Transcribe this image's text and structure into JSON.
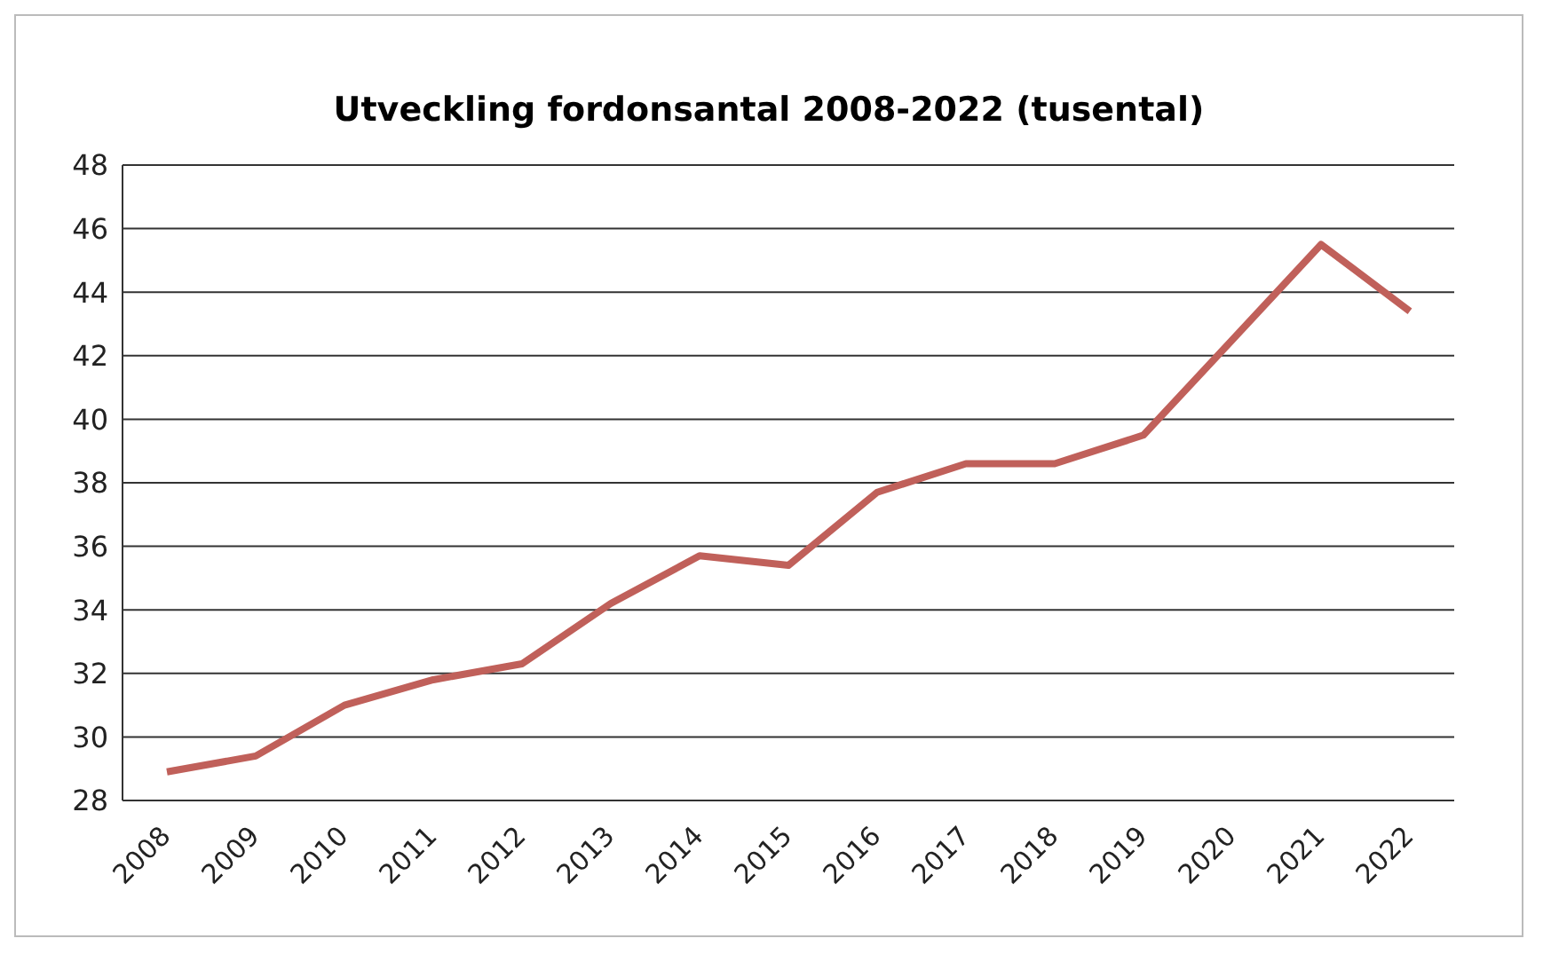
{
  "chart_data": {
    "type": "line",
    "title": "Utveckling fordonsantal 2008-2022 (tusental)",
    "categories": [
      "2008",
      "2009",
      "2010",
      "2011",
      "2012",
      "2013",
      "2014",
      "2015",
      "2016",
      "2017",
      "2018",
      "2019",
      "2020",
      "2021",
      "2022"
    ],
    "series": [
      {
        "color": "#c0605a",
        "values": [
          28.9,
          29.4,
          31.0,
          31.8,
          32.3,
          34.2,
          35.7,
          35.4,
          37.7,
          38.6,
          38.6,
          39.5,
          42.5,
          45.5,
          43.4
        ]
      }
    ],
    "ylim": [
      28,
      48
    ],
    "yticks": [
      28,
      30,
      32,
      34,
      36,
      38,
      40,
      42,
      44,
      46,
      48
    ],
    "grid": "y",
    "legend": false,
    "marker": "none",
    "line_style": "solid"
  }
}
